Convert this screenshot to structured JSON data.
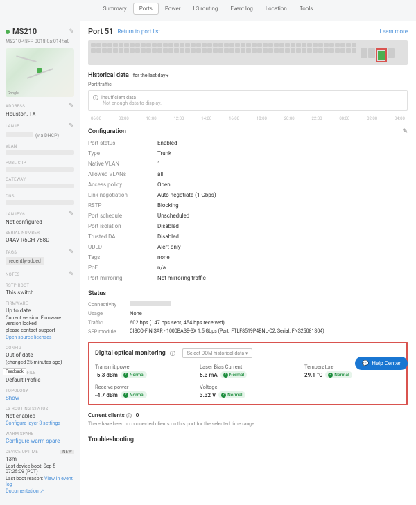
{
  "tabs": [
    "Summary",
    "Ports",
    "Power",
    "L3 routing",
    "Event log",
    "Location",
    "Tools"
  ],
  "tab_active_index": 1,
  "switch": {
    "name": "MS210",
    "sub": "MS210-48FP  0018.0a:014f:e0"
  },
  "sidebar": {
    "address": {
      "label": "ADDRESS",
      "value": "Houston, TX"
    },
    "lan_ip": {
      "label": "LAN IP",
      "value": "(via DHCP)"
    },
    "vlan": {
      "label": "VLAN"
    },
    "public_ip": {
      "label": "PUBLIC IP"
    },
    "gateway": {
      "label": "GATEWAY"
    },
    "dns": {
      "label": "DNS"
    },
    "lan_ipv6": {
      "label": "LAN IPV6",
      "value": "Not configured"
    },
    "serial": {
      "label": "SERIAL NUMBER",
      "value": "Q4AV-R5CH-788D"
    },
    "tags": {
      "label": "TAGS",
      "value": "recently-added"
    },
    "notes": {
      "label": "NOTES"
    },
    "rstp": {
      "label": "RSTP ROOT",
      "value": "This switch"
    },
    "firmware": {
      "label": "FIRMWARE",
      "line1": "Up to date",
      "line2": "Current version: Firmware version locked,",
      "line3": "please contact support",
      "link": "Open source licenses"
    },
    "config": {
      "label": "CONFIG",
      "line1": "Out of date",
      "line2": "(changed 25 minutes ago)"
    },
    "vlan_profile": {
      "label": "VLAN PROFILE",
      "value": "Default Profile"
    },
    "topology": {
      "label": "TOPOLOGY",
      "value": "Show"
    },
    "l3_status": {
      "label": "L3 ROUTING STATUS",
      "line1": "Not enabled",
      "link": "Configure layer 3 settings"
    },
    "warm_spare": {
      "label": "WARM SPARE",
      "value": "Configure warm spare"
    },
    "uptime": {
      "label": "DEVICE UPTIME",
      "badge": "NEW",
      "line1": "13m",
      "line2": "Last device boot: Sep 5 07:25:09 (PDT)",
      "line3": "Last boot reason: ",
      "link": "View in event log",
      "line4": "Documentation ↗"
    }
  },
  "port": {
    "title": "Port 51",
    "return": "Return to port list",
    "learn": "Learn more"
  },
  "historical": {
    "title": "Historical data",
    "range": "for the last day",
    "section": "Port traffic",
    "insufficient": "Insufficient data",
    "note": "Not enough data to display.",
    "ticks": [
      "06:00",
      "08:00",
      "10:00",
      "12:00",
      "14:00",
      "16:00",
      "18:00",
      "20:00",
      "22:00",
      "00:00",
      "02:00",
      "04:00"
    ]
  },
  "config_section": {
    "title": "Configuration",
    "rows": [
      {
        "k": "Port status",
        "v": "Enabled"
      },
      {
        "k": "Type",
        "v": "Trunk"
      },
      {
        "k": "Native VLAN",
        "v": "1"
      },
      {
        "k": "Allowed VLANs",
        "v": "all"
      },
      {
        "k": "Access policy",
        "v": "Open"
      },
      {
        "k": "Link negotiation",
        "v": "Auto negotiate (1 Gbps)"
      },
      {
        "k": "RSTP",
        "v": "Blocking"
      },
      {
        "k": "Port schedule",
        "v": "Unscheduled"
      },
      {
        "k": "Port isolation",
        "v": "Disabled"
      },
      {
        "k": "Trusted DAI",
        "v": "Disabled"
      },
      {
        "k": "UDLD",
        "v": "Alert only"
      },
      {
        "k": "Tags",
        "v": "none"
      },
      {
        "k": "PoE",
        "v": "n/a"
      },
      {
        "k": "Port mirroring",
        "v": "Not mirroring traffic"
      }
    ]
  },
  "status": {
    "title": "Status",
    "connectivity_k": "Connectivity",
    "usage_k": "Usage",
    "usage_v": "None",
    "traffic_k": "Traffic",
    "traffic_v": "602 bps (147 bps sent, 454 bps received)",
    "sfp_k": "SFP module",
    "sfp_v": "CISCO-FINISAR - 1000BASE-SX 1.5 Gbps (Part: FTLF8519P4BNL-C2, Serial: FNS25081304)"
  },
  "dom": {
    "title": "Digital optical monitoring",
    "select": "Select DOM historical data",
    "items": [
      {
        "label": "Transmit power",
        "value": "-5.3 dBm",
        "status": "Normal"
      },
      {
        "label": "Laser Bias Current",
        "value": "5.3 mA",
        "status": "Normal"
      },
      {
        "label": "Temperature",
        "value": "29.1 °C",
        "status": "Normal"
      },
      {
        "label": "Receive power",
        "value": "-4.7 dBm",
        "status": "Normal"
      },
      {
        "label": "Voltage",
        "value": "3.32 V",
        "status": "Normal"
      }
    ]
  },
  "clients": {
    "title": "Current clients",
    "count": "0",
    "note": "There have been no connected clients on this port for the selected time range."
  },
  "trouble": "Troubleshooting",
  "help": "Help Center",
  "feedback": "Feedback",
  "map_attr": "Google",
  "colors": {
    "accent": "#4CAF50",
    "highlight": "#d9534f",
    "link": "#4a90d9",
    "ok": "#1e8e3e"
  }
}
